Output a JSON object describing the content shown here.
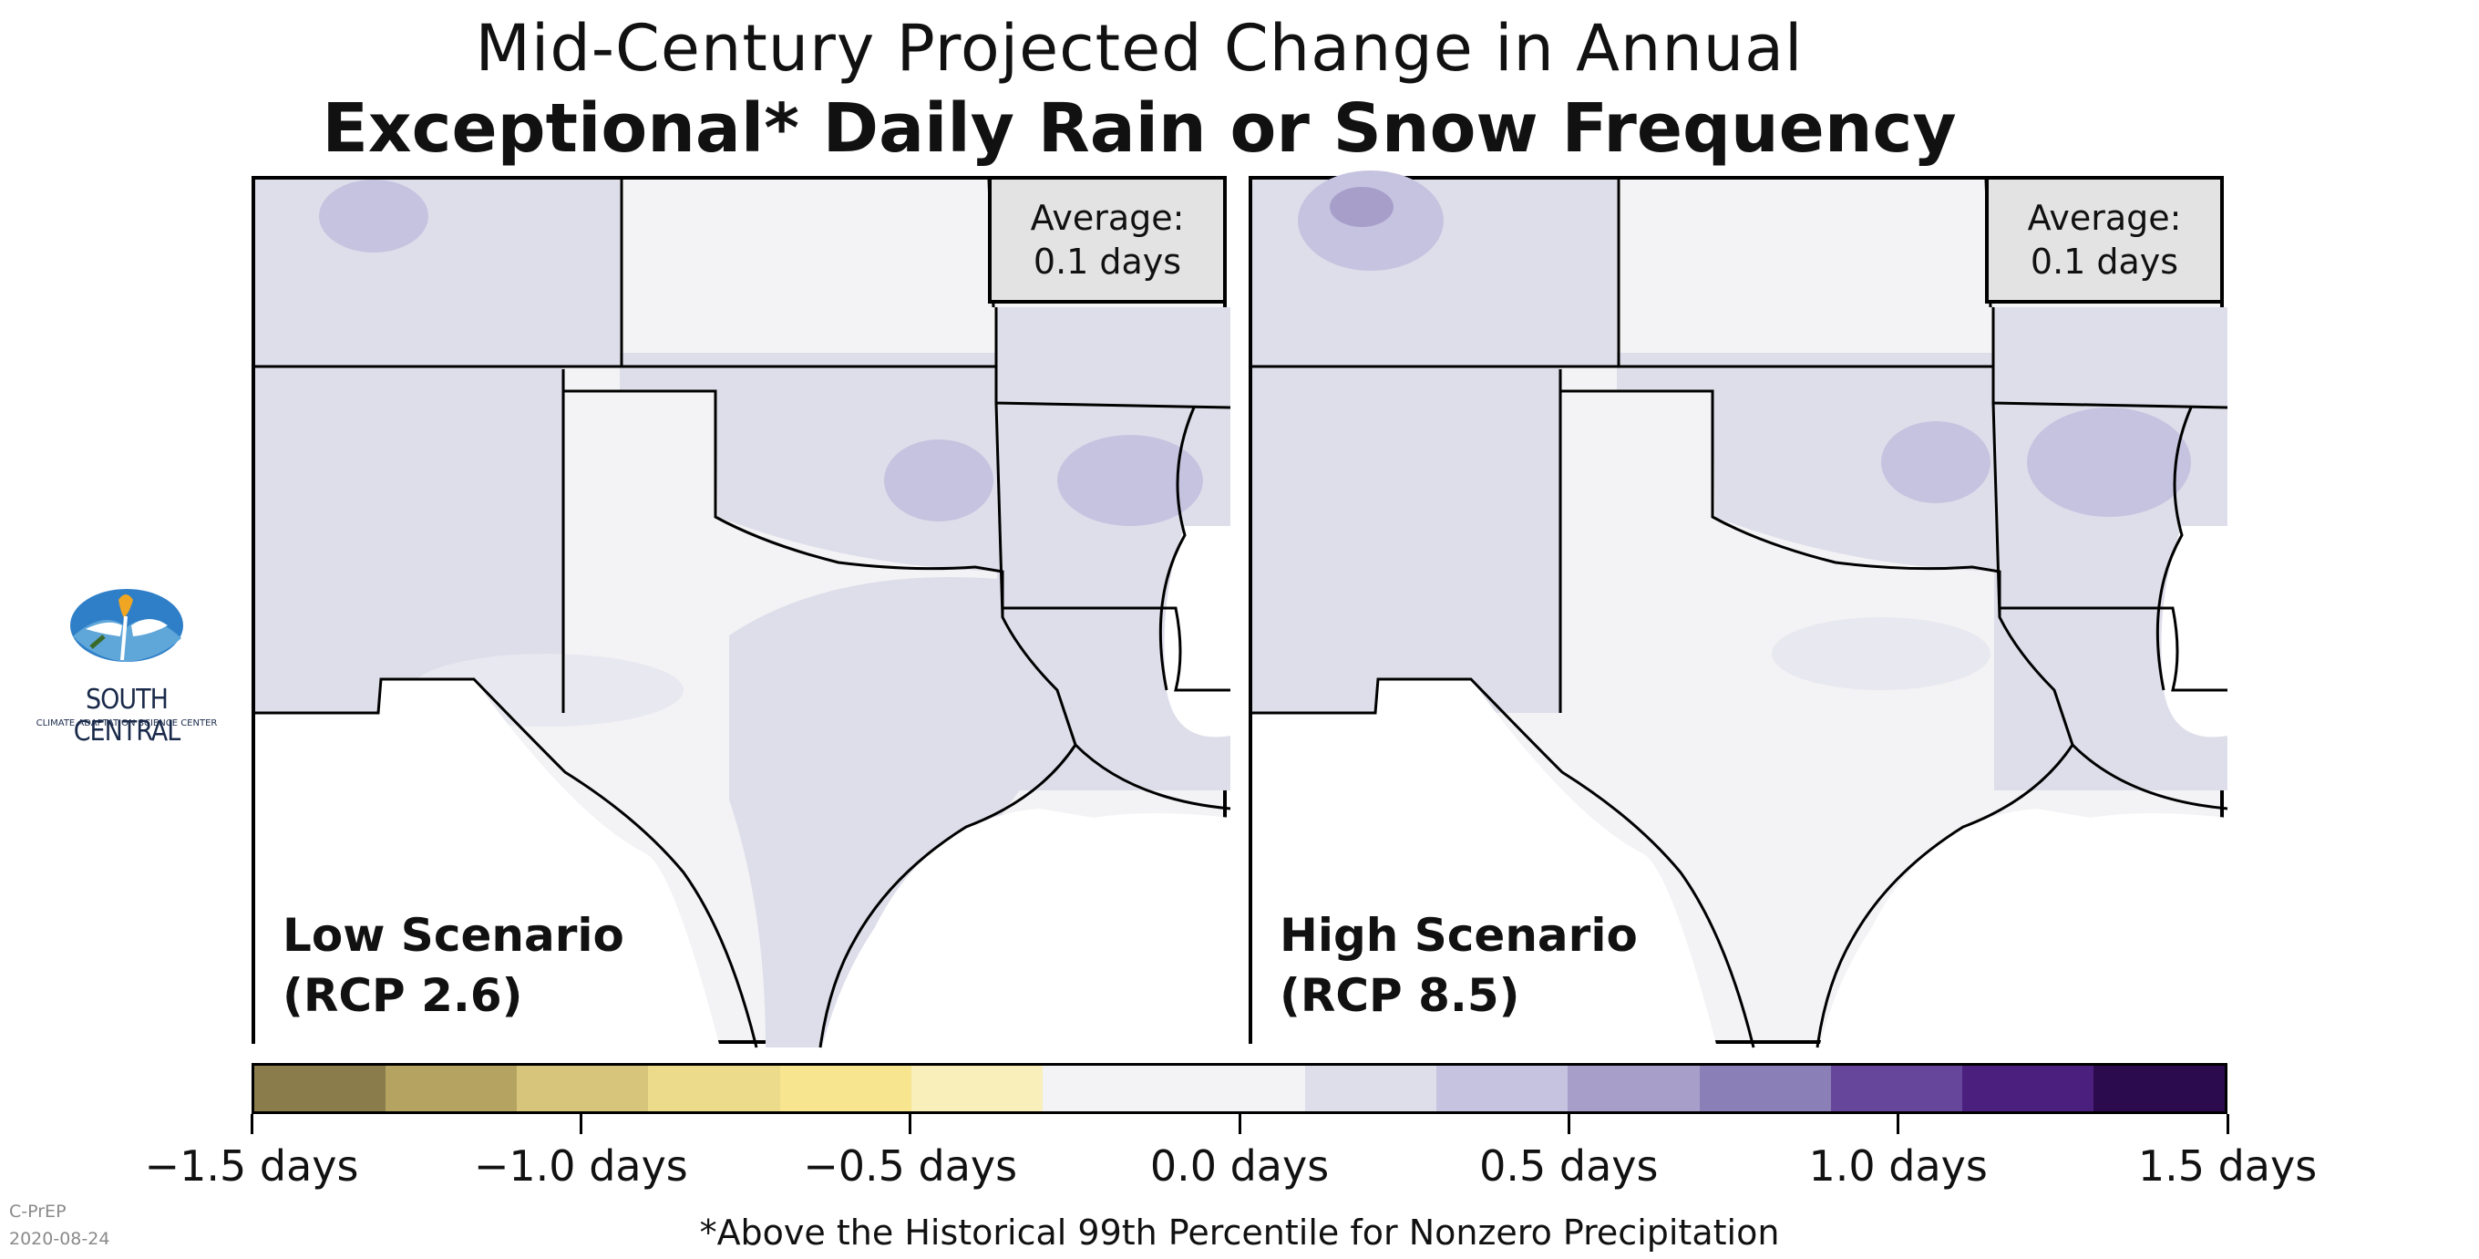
{
  "title": {
    "line1": "Mid-Century Projected Change in Annual",
    "line2": "Exceptional* Daily Rain or Snow Frequency"
  },
  "panels": [
    {
      "scenario_line1": "Low Scenario",
      "scenario_line2": "(RCP 2.6)",
      "average_label": "Average:",
      "average_value": "0.1 days"
    },
    {
      "scenario_line1": "High Scenario",
      "scenario_line2": "(RCP 8.5)",
      "average_label": "Average:",
      "average_value": "0.1 days"
    }
  ],
  "legend": {
    "min": -1.5,
    "max": 1.5,
    "step": 0.2,
    "colors": [
      "#8a7d4b",
      "#b5a461",
      "#d6c57a",
      "#ecdb8a",
      "#f8e590",
      "#f8efba",
      "#f3f3f5",
      "#f3f3f5",
      "#dedeeb",
      "#c6c3e0",
      "#a79fca",
      "#8a7fb6",
      "#66469a",
      "#4b1f7d",
      "#2c0a4e"
    ],
    "tick_labels": [
      "−1.5 days",
      "−1.0 days",
      "−0.5 days",
      "0.0 days",
      "0.5 days",
      "1.0 days",
      "1.5 days"
    ]
  },
  "logo": {
    "line1": "SOUTH CENTRAL",
    "line2": "CLIMATE ADAPTATION SCIENCE CENTER"
  },
  "credit": {
    "org": "C-PrEP",
    "date": "2020-08-24"
  },
  "footnote": "*Above the Historical 99th Percentile for Nonzero Precipitation"
}
